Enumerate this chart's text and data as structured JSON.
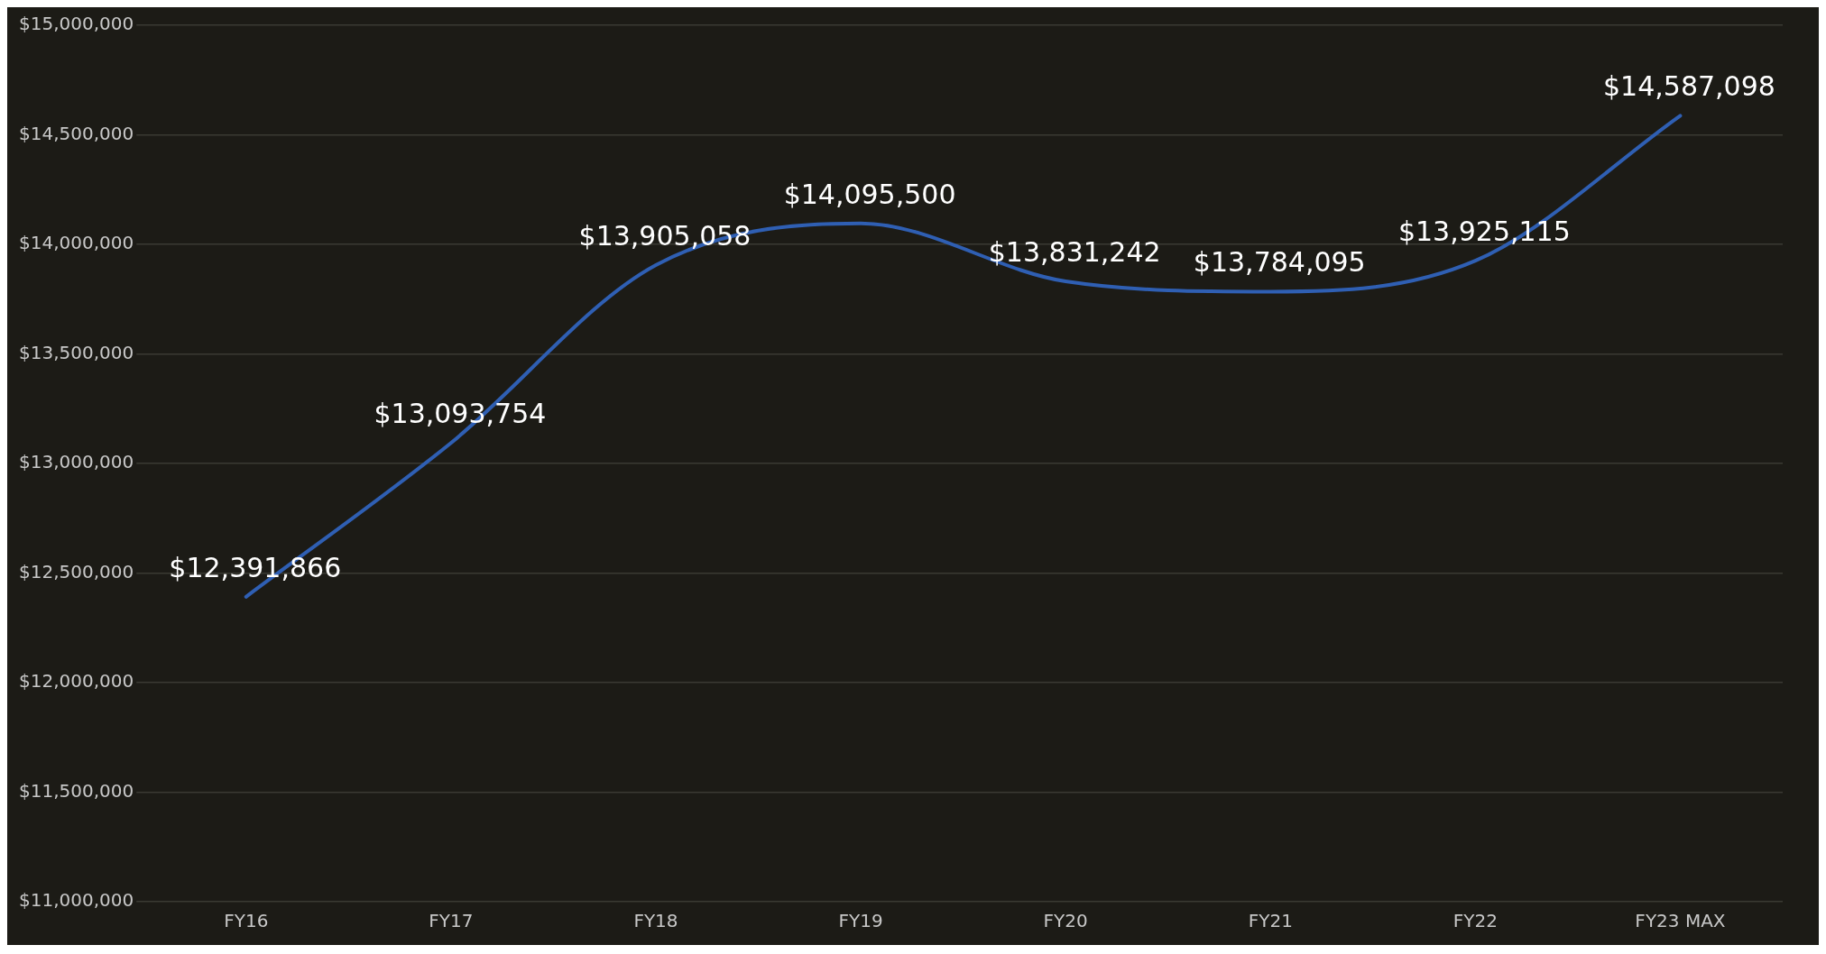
{
  "chart_data": {
    "type": "line",
    "categories": [
      "FY16",
      "FY17",
      "FY18",
      "FY19",
      "FY20",
      "FY21",
      "FY22",
      "FY23 MAX"
    ],
    "series": [
      {
        "color": "#2f5fb3",
        "values": [
          12391866,
          13093754,
          13905058,
          14095500,
          13831242,
          13784095,
          13925115,
          14587098
        ],
        "value_labels": [
          "$12,391,866",
          "$13,093,754",
          "$13,905,058",
          "$14,095,500",
          "$13,831,242",
          "$13,784,095",
          "$13,925,115",
          "$14,587,098"
        ]
      }
    ],
    "ylim": [
      11000000,
      15000000
    ],
    "yticks": [
      {
        "value": 11000000,
        "label": "$11,000,000"
      },
      {
        "value": 11500000,
        "label": "$11,500,000"
      },
      {
        "value": 12000000,
        "label": "$12,000,000"
      },
      {
        "value": 12500000,
        "label": "$12,500,000"
      },
      {
        "value": 13000000,
        "label": "$13,000,000"
      },
      {
        "value": 13500000,
        "label": "$13,500,000"
      },
      {
        "value": 14000000,
        "label": "$14,000,000"
      },
      {
        "value": 14500000,
        "label": "$14,500,000"
      },
      {
        "value": 15000000,
        "label": "$15,000,000"
      }
    ],
    "grid": "y",
    "legend": false,
    "line_style": "solid"
  }
}
